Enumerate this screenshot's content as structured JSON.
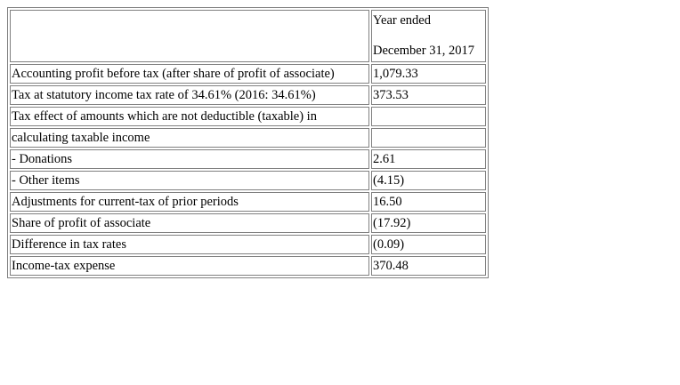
{
  "table": {
    "header": {
      "label": "",
      "value_line1": "Year ended",
      "value_line2": "December 31, 2017"
    },
    "rows": [
      {
        "label": "Accounting profit before tax (after share of profit of associate)",
        "value": "1,079.33"
      },
      {
        "label": "Tax at statutory income tax rate of 34.61% (2016: 34.61%)",
        "value": "373.53"
      },
      {
        "label": "Tax effect of amounts which are not deductible (taxable) in",
        "value": ""
      },
      {
        "label": "calculating taxable income",
        "value": ""
      },
      {
        "label": "- Donations",
        "value": "2.61"
      },
      {
        "label": "- Other items",
        "value": "(4.15)"
      },
      {
        "label": "Adjustments for current-tax of prior periods",
        "value": "16.50"
      },
      {
        "label": "Share of profit of associate",
        "value": "(17.92)"
      },
      {
        "label": "Difference in tax rates",
        "value": "(0.09)"
      },
      {
        "label": "Income-tax expense",
        "value": "370.48"
      }
    ]
  }
}
